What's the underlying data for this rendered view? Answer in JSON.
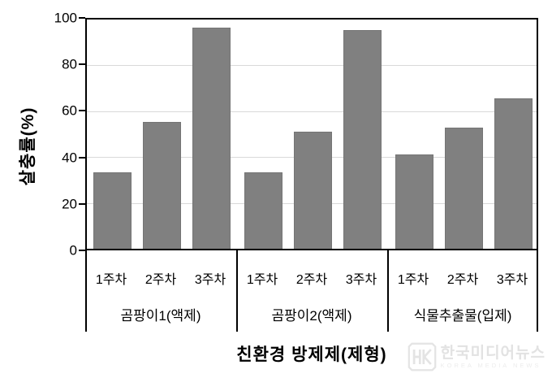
{
  "chart_data": {
    "type": "bar",
    "title": "",
    "ylabel": "살충률(%)",
    "xlabel": "친환경 방제제(제형)",
    "ylim": [
      0,
      100
    ],
    "yticks": [
      0,
      20,
      40,
      60,
      80,
      100
    ],
    "grid": true,
    "legend_position": "none",
    "bar_color": "#808080",
    "gridline_color": "#d9d9d9",
    "categories": [
      "1주차",
      "2주차",
      "3주차"
    ],
    "groups": [
      {
        "label": "곰팡이1(액제)",
        "values": [
          33.5,
          55.5,
          96.5
        ]
      },
      {
        "label": "곰팡이2(액제)",
        "values": [
          33.3,
          51.0,
          95.5
        ]
      },
      {
        "label": "식물추출물(입제)",
        "values": [
          41.0,
          53.0,
          65.5
        ]
      }
    ]
  },
  "watermark": {
    "logo": "HK",
    "name": "한국미디어뉴스",
    "tagline": "KOREA MEDIA NEWS"
  }
}
